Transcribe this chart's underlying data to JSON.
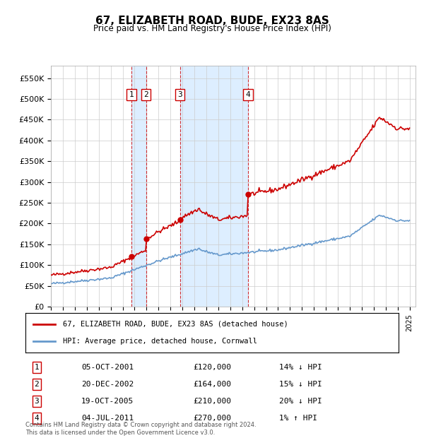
{
  "title": "67, ELIZABETH ROAD, BUDE, EX23 8AS",
  "subtitle": "Price paid vs. HM Land Registry's House Price Index (HPI)",
  "ylabel_ticks": [
    "£0",
    "£50K",
    "£100K",
    "£150K",
    "£200K",
    "£250K",
    "£300K",
    "£350K",
    "£400K",
    "£450K",
    "£500K",
    "£550K"
  ],
  "ytick_vals": [
    0,
    50000,
    100000,
    150000,
    200000,
    250000,
    300000,
    350000,
    400000,
    450000,
    500000,
    550000
  ],
  "ylim": [
    0,
    580000
  ],
  "xlim_start": 1995.0,
  "xlim_end": 2025.5,
  "transactions": [
    {
      "num": 1,
      "date": "05-OCT-2001",
      "year": 2001.75,
      "price": 120000,
      "label": "14% ↓ HPI"
    },
    {
      "num": 2,
      "date": "20-DEC-2002",
      "year": 2002.96,
      "price": 164000,
      "label": "15% ↓ HPI"
    },
    {
      "num": 3,
      "date": "19-OCT-2005",
      "year": 2005.79,
      "price": 210000,
      "label": "20% ↓ HPI"
    },
    {
      "num": 4,
      "date": "04-JUL-2011",
      "year": 2011.5,
      "price": 270000,
      "label": "1% ↑ HPI"
    }
  ],
  "legend_line1": "67, ELIZABETH ROAD, BUDE, EX23 8AS (detached house)",
  "legend_line2": "HPI: Average price, detached house, Cornwall",
  "footnote": "Contains HM Land Registry data © Crown copyright and database right 2024.\nThis data is licensed under the Open Government Licence v3.0.",
  "hpi_color": "#6699cc",
  "price_color": "#cc0000",
  "transaction_box_color": "#cc0000",
  "shade_color": "#ddeeff",
  "grid_color": "#cccccc",
  "background_color": "#ffffff"
}
